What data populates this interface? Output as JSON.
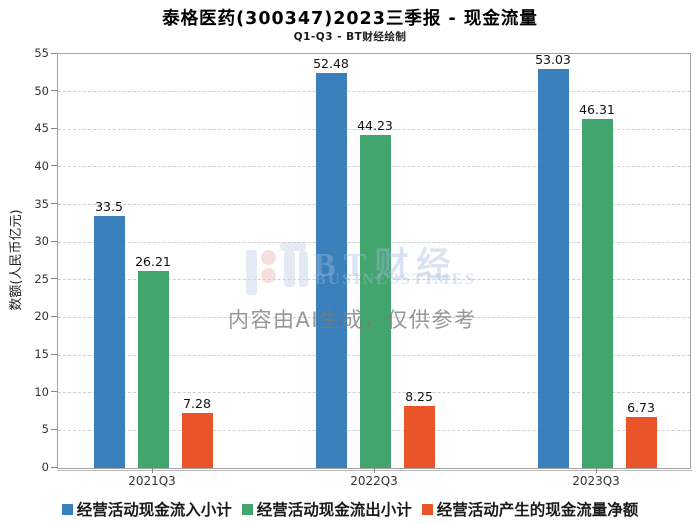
{
  "header": {
    "title": "泰格医药(300347)2023三季报 - 现金流量",
    "subtitle": "Q1-Q3 - BT财经绘制"
  },
  "chart_data": {
    "type": "bar",
    "categories": [
      "2021Q3",
      "2022Q3",
      "2023Q3"
    ],
    "series": [
      {
        "name": "经营活动现金流入小计",
        "color": "#3a80bd",
        "values": [
          33.5,
          52.48,
          53.03
        ]
      },
      {
        "name": "经营活动现金流出小计",
        "color": "#43a56e",
        "values": [
          26.21,
          44.23,
          46.31
        ]
      },
      {
        "name": "经营活动产生的现金流量净额",
        "color": "#e95428",
        "values": [
          7.28,
          8.25,
          6.73
        ]
      }
    ],
    "title": "泰格医药(300347)2023三季报 - 现金流量",
    "subtitle": "Q1-Q3 - BT财经绘制",
    "xlabel": "",
    "ylabel": "数额(人民币亿元)",
    "ylim": [
      0,
      55
    ],
    "ytick_step": 5,
    "grid": "horizontal-dashed",
    "legend_position": "bottom",
    "bar_value_labels": true
  },
  "watermark": {
    "brand": "BT财经",
    "brand_sub": "BUSINESSTIMES",
    "disclaimer": "内容由AI生成，仅供参考",
    "logo_icon": "bt-logo-icon"
  },
  "colors": {
    "background": "#ffffff",
    "plot_border": "#a3a3a3",
    "gridline": "#cfcfcf",
    "tick_text": "#333333",
    "bar_label_text": "#111111",
    "series_blue": "#3a80bd",
    "series_green": "#43a56e",
    "series_orange": "#e95428"
  }
}
